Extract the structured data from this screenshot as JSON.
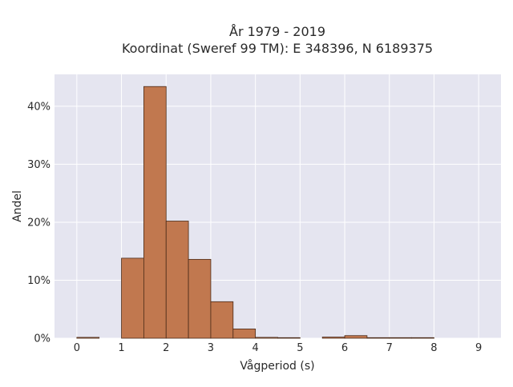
{
  "chart_data": {
    "type": "bar",
    "title_line1": "År 1979 - 2019",
    "title_line2": "Koordinat (Sweref 99 TM): E 348396, N 6189375",
    "xlabel": "Vågperiod (s)",
    "ylabel": "Andel",
    "xlim": [
      -0.5,
      9.5
    ],
    "ylim": [
      0,
      45.5
    ],
    "x_ticks": [
      0,
      1,
      2,
      3,
      4,
      5,
      6,
      7,
      8,
      9
    ],
    "x_tick_labels": [
      "0",
      "1",
      "2",
      "3",
      "4",
      "5",
      "6",
      "7",
      "8",
      "9"
    ],
    "y_ticks": [
      0,
      10,
      20,
      30,
      40
    ],
    "y_tick_labels": [
      "0%",
      "10%",
      "20%",
      "30%",
      "40%"
    ],
    "bin_width": 0.5,
    "bins": [
      {
        "start": 0.0,
        "value": 0.15
      },
      {
        "start": 1.0,
        "value": 13.8
      },
      {
        "start": 1.5,
        "value": 43.4
      },
      {
        "start": 2.0,
        "value": 20.2
      },
      {
        "start": 2.5,
        "value": 13.6
      },
      {
        "start": 3.0,
        "value": 6.3
      },
      {
        "start": 3.5,
        "value": 1.6
      },
      {
        "start": 4.0,
        "value": 0.15
      },
      {
        "start": 4.5,
        "value": 0.1
      },
      {
        "start": 5.5,
        "value": 0.2
      },
      {
        "start": 6.0,
        "value": 0.45
      },
      {
        "start": 6.5,
        "value": 0.1
      },
      {
        "start": 7.0,
        "value": 0.1
      },
      {
        "start": 7.5,
        "value": 0.1
      }
    ],
    "grid": true,
    "colors": {
      "bar_fill": "#c1784f",
      "bar_stroke": "#4a2a18",
      "plot_background": "#e5e5f0",
      "grid": "#ffffff"
    }
  }
}
